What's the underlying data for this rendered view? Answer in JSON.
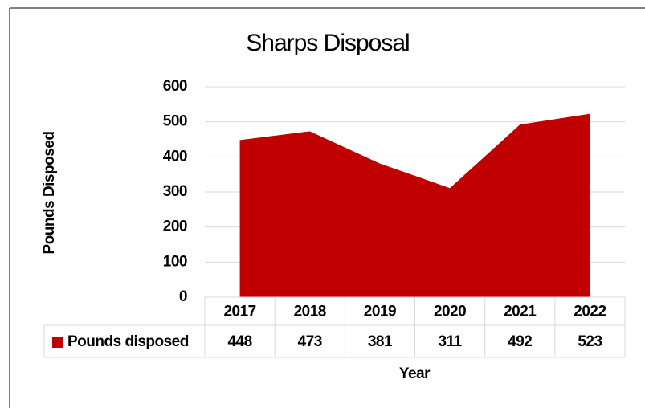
{
  "chart_data": {
    "type": "area",
    "title": "Sharps Disposal",
    "x_label": "Year",
    "y_label": "Pounds Disposed",
    "categories": [
      "2017",
      "2018",
      "2019",
      "2020",
      "2021",
      "2022"
    ],
    "series": [
      {
        "name": "Pounds disposed",
        "color": "#c00000",
        "values": [
          448,
          473,
          381,
          311,
          492,
          523
        ]
      }
    ],
    "ylim": [
      0,
      600
    ],
    "yticks": [
      0,
      100,
      200,
      300,
      400,
      500,
      600
    ],
    "grid": true,
    "data_table": true
  }
}
